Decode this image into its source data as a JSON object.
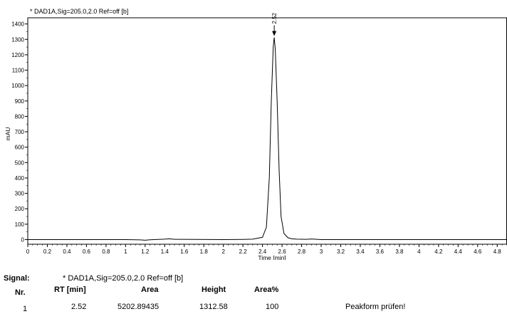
{
  "chart_data": {
    "type": "line",
    "title": "* DAD1A,Sig=205.0,2.0  Ref=off [b]",
    "xlabel": "Time [min]",
    "ylabel": "mAU",
    "xlim": [
      0,
      4.9
    ],
    "ylim": [
      -30,
      1440
    ],
    "xticks": [
      0,
      0.2,
      0.4,
      0.6,
      0.8,
      1,
      1.2,
      1.4,
      1.6,
      1.8,
      2,
      2.2,
      2.4,
      2.6,
      2.8,
      3,
      3.2,
      3.4,
      3.6,
      3.8,
      4,
      4.2,
      4.4,
      4.6,
      4.8
    ],
    "yticks": [
      0,
      100,
      200,
      300,
      400,
      500,
      600,
      700,
      800,
      900,
      1000,
      1100,
      1200,
      1300,
      1400
    ],
    "grid": false,
    "series": [
      {
        "x": [
          0,
          0.5,
          1.0,
          1.15,
          1.2,
          1.25,
          1.4,
          1.45,
          1.5,
          2.0,
          2.2,
          2.3,
          2.4,
          2.44,
          2.47,
          2.49,
          2.51,
          2.52,
          2.53,
          2.55,
          2.57,
          2.59,
          2.62,
          2.66,
          2.7,
          2.75,
          2.85,
          2.9,
          3.0,
          4.9
        ],
        "y": [
          0,
          0,
          0,
          -2,
          -4,
          -1,
          3,
          5,
          2,
          0,
          1,
          3,
          15,
          80,
          400,
          900,
          1250,
          1312.58,
          1240,
          900,
          450,
          150,
          40,
          12,
          5,
          3,
          2,
          4,
          0,
          0
        ]
      }
    ],
    "peak_annotation": {
      "x": 2.52,
      "y": 1312.58,
      "label": "2.52"
    }
  },
  "results": {
    "signal_label": "Signal:",
    "signal_value": "* DAD1A,Sig=205.0,2.0  Ref=off [b]",
    "headers": {
      "nr": "Nr.",
      "rt": "RT [min]",
      "area": "Area",
      "height": "Height",
      "areapct": "Area%"
    },
    "rows": [
      {
        "nr": "1",
        "rt": "2.52",
        "area": "5202.89435",
        "height": "1312.58",
        "areapct": "100",
        "note": "Peakform prüfen!"
      }
    ]
  }
}
